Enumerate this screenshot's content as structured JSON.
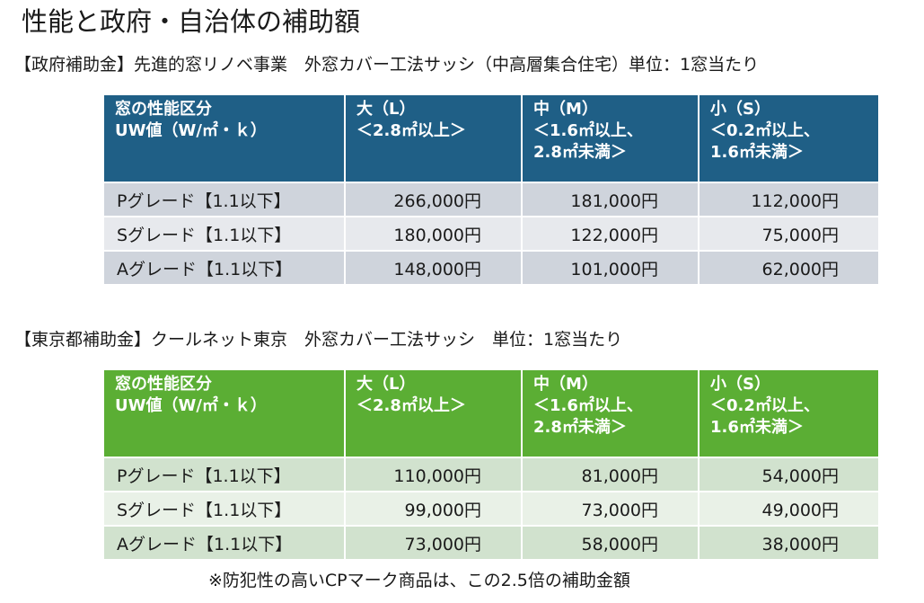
{
  "title": "性能と政府・自治体の補助額",
  "sections": [
    {
      "title": "【政府補助金】先進的窓リノベ事業　外窓カバー工法サッシ（中高層集合住宅）単位：1窓当たり",
      "header": {
        "col0": [
          "窓の性能区分",
          "UW値（W/㎡・ｋ）"
        ],
        "col1": [
          "大（L）",
          "＜2.8㎡以上＞"
        ],
        "col2": [
          "中（M）",
          "＜1.6㎡以上、",
          "2.8㎡未満＞"
        ],
        "col3": [
          "小（S）",
          "＜0.2㎡以上、",
          "1.6㎡未満＞"
        ]
      },
      "rows": [
        {
          "grade": "Pグレード【1.1以下】",
          "large": "266,000円",
          "medium": "181,000円",
          "small": "112,000円"
        },
        {
          "grade": "Sグレード【1.1以下】",
          "large": "180,000円",
          "medium": "122,000円",
          "small": "75,000円"
        },
        {
          "grade": "Aグレード【1.1以下】",
          "large": "148,000円",
          "medium": "101,000円",
          "small": "62,000円"
        }
      ],
      "header_color": "#1f5f86"
    },
    {
      "title": "【東京都補助金】クールネット東京　外窓カバー工法サッシ　単位：1窓当たり",
      "header": {
        "col0": [
          "窓の性能区分",
          "UW値（W/㎡・ｋ）"
        ],
        "col1": [
          "大（L）",
          "＜2.8㎡以上＞"
        ],
        "col2": [
          "中（M）",
          "＜1.6㎡以上、",
          "2.8㎡未満＞"
        ],
        "col3": [
          "小（S）",
          "＜0.2㎡以上、",
          "1.6㎡未満＞"
        ]
      },
      "rows": [
        {
          "grade": "Pグレード【1.1以下】",
          "large": "110,000円",
          "medium": "81,000円",
          "small": "54,000円"
        },
        {
          "grade": "Sグレード【1.1以下】",
          "large": "99,000円",
          "medium": "73,000円",
          "small": "49,000円"
        },
        {
          "grade": "Aグレード【1.1以下】",
          "large": "73,000円",
          "medium": "58,000円",
          "small": "38,000円"
        }
      ],
      "header_color": "#5bae34"
    }
  ],
  "footnote": "※防犯性の高いCPマーク商品は、この2.5倍の補助金額"
}
